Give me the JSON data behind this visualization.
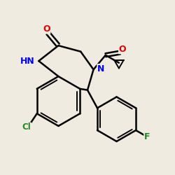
{
  "background_color": "#f0ebe0",
  "bond_color": "#000000",
  "atom_colors": {
    "O": "#dd0000",
    "N": "#0000ee",
    "Cl": "#228822",
    "F": "#228822"
  },
  "figsize": [
    2.5,
    2.5
  ],
  "dpi": 100
}
